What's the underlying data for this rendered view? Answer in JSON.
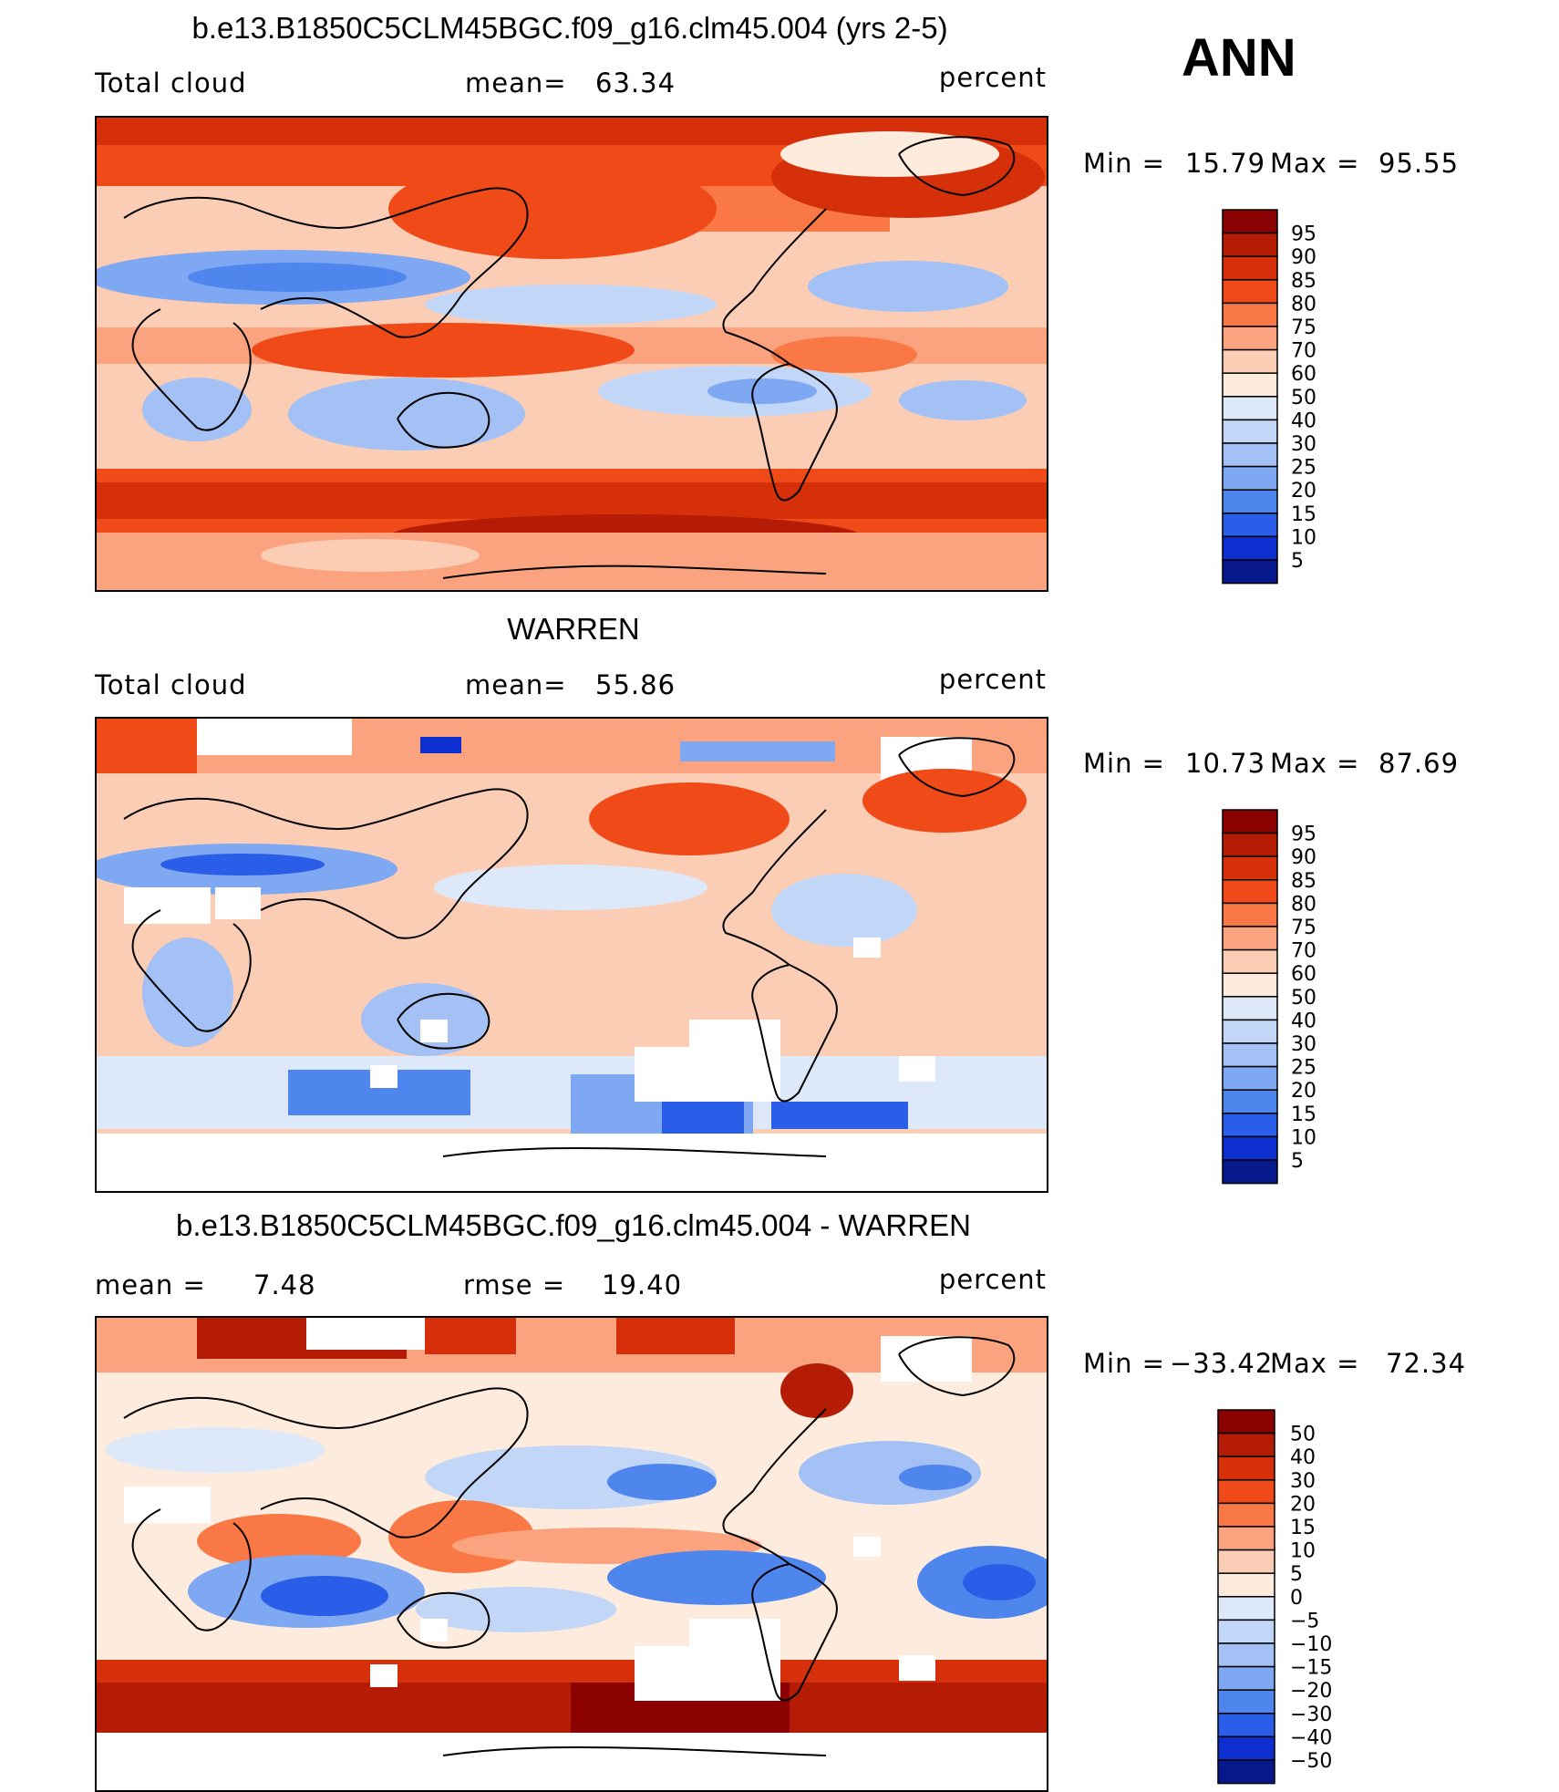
{
  "season": "ANN",
  "units": "percent",
  "panels": [
    {
      "id": "model",
      "title": "b.e13.B1850C5CLM45BGC.f09_g16.clm45.004 (yrs 2-5)",
      "variable": "Total cloud",
      "stat1_label": "mean=",
      "stat1_value": "63.34",
      "units": "percent",
      "min_label": "Min =",
      "min_value": "15.79",
      "max_label": "Max =",
      "max_value": "95.55"
    },
    {
      "id": "obs",
      "title": "WARREN",
      "variable": "Total cloud",
      "stat1_label": "mean=",
      "stat1_value": "55.86",
      "units": "percent",
      "min_label": "Min =",
      "min_value": "10.73",
      "max_label": "Max =",
      "max_value": "87.69"
    },
    {
      "id": "diff",
      "title": "b.e13.B1850C5CLM45BGC.f09_g16.clm45.004 - WARREN",
      "stat1_label": "mean =",
      "stat1_value": "7.48",
      "stat2_label": "rmse =",
      "stat2_value": "19.40",
      "units": "percent",
      "min_label": "Min =",
      "min_value": "−33.42",
      "max_label": "Max =",
      "max_value": "72.34"
    }
  ],
  "colorbars": {
    "field": {
      "levels": [
        "95",
        "90",
        "85",
        "80",
        "75",
        "70",
        "60",
        "50",
        "40",
        "30",
        "25",
        "20",
        "15",
        "10",
        "5"
      ],
      "colors": [
        "#8b0000",
        "#b51c05",
        "#d6300b",
        "#f04a19",
        "#f97846",
        "#fba37e",
        "#fccdb5",
        "#fdebdd",
        "#dde9f9",
        "#c2d7f7",
        "#a3c1f5",
        "#7ea8f2",
        "#4f86ee",
        "#2a5de8",
        "#0e2fd0",
        "#06188c"
      ]
    },
    "diff": {
      "levels": [
        "50",
        "40",
        "30",
        "20",
        "15",
        "10",
        "5",
        "0",
        "−5",
        "−10",
        "−15",
        "−20",
        "−30",
        "−40",
        "−50"
      ],
      "colors": [
        "#8b0000",
        "#b51c05",
        "#d6300b",
        "#f04a19",
        "#f97846",
        "#fba37e",
        "#fccdb5",
        "#fdebdd",
        "#dde9f9",
        "#c2d7f7",
        "#a3c1f5",
        "#7ea8f2",
        "#4f86ee",
        "#2a5de8",
        "#0e2fd0",
        "#06188c"
      ]
    }
  }
}
